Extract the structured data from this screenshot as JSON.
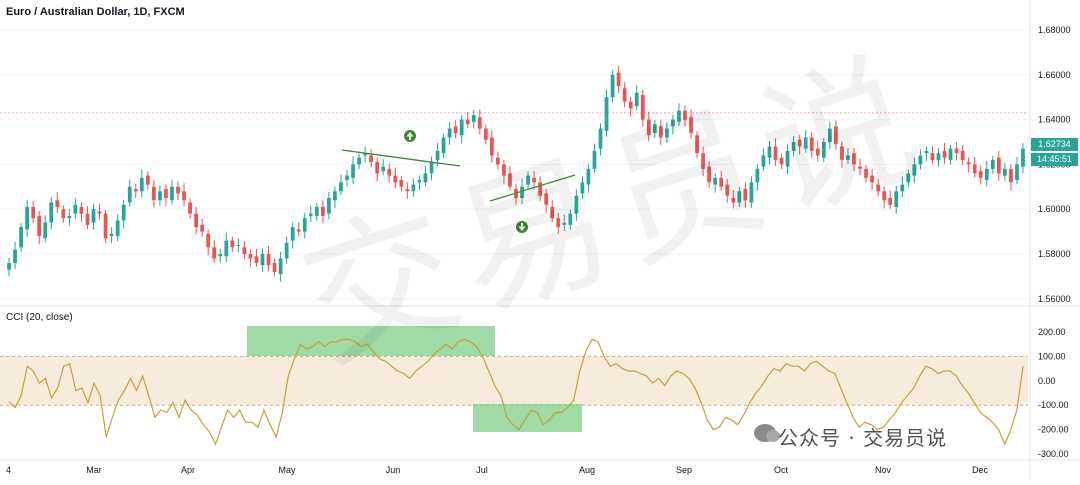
{
  "header": {
    "title": "Euro / Australian Dollar, 1D, FXCM"
  },
  "indicator": {
    "title": "CCI (20, close)"
  },
  "price_tags": {
    "last_price": "1.62734",
    "countdown": "14:45:51"
  },
  "watermark": {
    "text": "公众号 · 交易员说",
    "big": "交易员说"
  },
  "colors": {
    "up": "#26a69a",
    "down": "#ef5350",
    "cci_line": "#c9a038",
    "band": "#f5e6d3",
    "highlight": "#7fcf8a",
    "trendline": "#3a8a2a",
    "resistance": "#f7a4a4"
  },
  "chart_data": [
    {
      "type": "candlestick",
      "title": "Euro / Australian Dollar, 1D, FXCM",
      "x_ticks": [
        "4",
        "Mar",
        "Apr",
        "May",
        "Jun",
        "Jul",
        "Aug",
        "Sep",
        "Oct",
        "Nov",
        "Dec"
      ],
      "y_ticks": [
        "1.68000",
        "1.66000",
        "1.64000",
        "1.62000",
        "1.60000",
        "1.58000",
        "1.56000"
      ],
      "ylim": [
        1.555,
        1.685
      ],
      "resistance_level": 1.643,
      "last_price": 1.62734,
      "close": [
        1.576,
        1.582,
        1.592,
        1.601,
        1.596,
        1.588,
        1.594,
        1.603,
        1.601,
        1.596,
        1.597,
        1.602,
        1.598,
        1.593,
        1.6,
        1.598,
        1.587,
        1.589,
        1.595,
        1.602,
        1.61,
        1.608,
        1.614,
        1.611,
        1.604,
        1.608,
        1.605,
        1.61,
        1.607,
        1.604,
        1.598,
        1.592,
        1.59,
        1.583,
        1.578,
        1.58,
        1.586,
        1.583,
        1.584,
        1.58,
        1.578,
        1.576,
        1.58,
        1.575,
        1.572,
        1.578,
        1.585,
        1.592,
        1.59,
        1.596,
        1.598,
        1.601,
        1.597,
        1.605,
        1.608,
        1.612,
        1.615,
        1.62,
        1.623,
        1.625,
        1.621,
        1.616,
        1.619,
        1.615,
        1.612,
        1.61,
        1.608,
        1.611,
        1.613,
        1.616,
        1.621,
        1.626,
        1.632,
        1.636,
        1.634,
        1.64,
        1.638,
        1.642,
        1.636,
        1.631,
        1.624,
        1.62,
        1.615,
        1.61,
        1.605,
        1.61,
        1.615,
        1.612,
        1.606,
        1.602,
        1.596,
        1.592,
        1.594,
        1.598,
        1.606,
        1.612,
        1.618,
        1.626,
        1.636,
        1.65,
        1.66,
        1.655,
        1.648,
        1.645,
        1.652,
        1.64,
        1.633,
        1.638,
        1.632,
        1.636,
        1.64,
        1.644,
        1.64,
        1.634,
        1.625,
        1.618,
        1.612,
        1.614,
        1.61,
        1.606,
        1.603,
        1.608,
        1.604,
        1.612,
        1.618,
        1.624,
        1.628,
        1.622,
        1.62,
        1.626,
        1.63,
        1.628,
        1.632,
        1.626,
        1.624,
        1.63,
        1.636,
        1.629,
        1.622,
        1.624,
        1.62,
        1.618,
        1.614,
        1.612,
        1.608,
        1.604,
        1.602,
        1.608,
        1.611,
        1.616,
        1.62,
        1.624,
        1.626,
        1.622,
        1.625,
        1.623,
        1.627,
        1.625,
        1.622,
        1.62,
        1.616,
        1.614,
        1.618,
        1.622,
        1.616,
        1.618,
        1.612,
        1.62,
        1.627
      ],
      "cci": [
        -85,
        -110,
        -60,
        60,
        40,
        -10,
        10,
        -70,
        -30,
        60,
        70,
        -40,
        -30,
        -90,
        -10,
        -60,
        -230,
        -150,
        -80,
        -40,
        10,
        -40,
        20,
        -60,
        -150,
        -120,
        -130,
        -90,
        -150,
        -80,
        -120,
        -140,
        -180,
        -210,
        -260,
        -190,
        -120,
        -150,
        -120,
        -170,
        -170,
        -190,
        -120,
        -180,
        -230,
        -130,
        20,
        90,
        150,
        130,
        140,
        160,
        140,
        160,
        160,
        170,
        170,
        160,
        140,
        150,
        120,
        90,
        80,
        60,
        40,
        30,
        10,
        40,
        60,
        80,
        110,
        130,
        150,
        130,
        160,
        170,
        160,
        140,
        100,
        40,
        -20,
        -60,
        -150,
        -180,
        -200,
        -160,
        -120,
        -130,
        -180,
        -160,
        -130,
        -130,
        -110,
        -80,
        40,
        120,
        170,
        160,
        100,
        60,
        70,
        50,
        40,
        40,
        30,
        20,
        -10,
        10,
        -20,
        20,
        40,
        30,
        10,
        -30,
        -90,
        -160,
        -200,
        -190,
        -150,
        -160,
        -180,
        -140,
        -90,
        -50,
        -20,
        20,
        50,
        40,
        70,
        60,
        60,
        40,
        70,
        80,
        60,
        40,
        30,
        -30,
        -90,
        -150,
        -190,
        -170,
        -180,
        -200,
        -190,
        -160,
        -130,
        -90,
        -60,
        -30,
        20,
        60,
        50,
        30,
        40,
        40,
        20,
        -20,
        -50,
        -90,
        -130,
        -150,
        -170,
        -200,
        -260,
        -200,
        -120,
        60
      ]
    },
    {
      "type": "line",
      "title": "CCI (20, close)",
      "y_ticks": [
        "200.00",
        "100.00",
        "0.00",
        "-100.00",
        "-200.00",
        "-300.00"
      ],
      "ylim": [
        -300,
        250
      ],
      "band": [
        -100,
        100
      ]
    }
  ]
}
